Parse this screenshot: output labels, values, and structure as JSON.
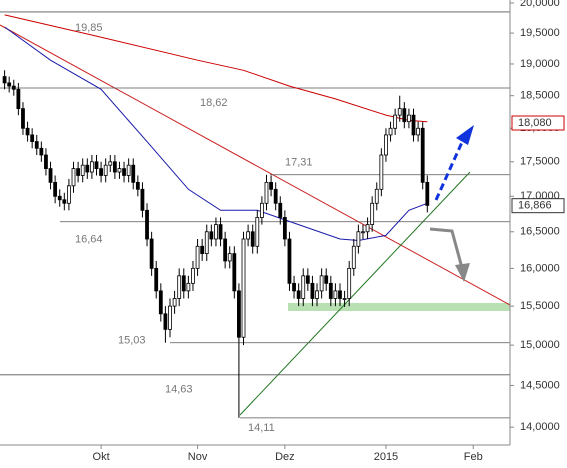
{
  "chart_data": {
    "type": "candlestick",
    "ylog": true,
    "ylim": [
      13.85,
      20.05
    ],
    "yticks": [
      {
        "value": 20,
        "label": "20,0000"
      },
      {
        "value": 19.5,
        "label": "19,5000"
      },
      {
        "value": 19,
        "label": "19,0000"
      },
      {
        "value": 18.5,
        "label": "18,5000"
      },
      {
        "value": 18,
        "label": "18,0000"
      },
      {
        "value": 17.5,
        "label": "17,5000"
      },
      {
        "value": 17,
        "label": "17,0000"
      },
      {
        "value": 16.5,
        "label": "16,5000"
      },
      {
        "value": 16,
        "label": "16,0000"
      },
      {
        "value": 15.5,
        "label": "15,5000"
      },
      {
        "value": 15,
        "label": "15,0000"
      },
      {
        "value": 14.5,
        "label": "14,5000"
      },
      {
        "value": 14,
        "label": "14,0000"
      }
    ],
    "xlim": [
      -1,
      110
    ],
    "xticks": [
      {
        "value": 21,
        "label": "Okt"
      },
      {
        "value": 42,
        "label": "Nov"
      },
      {
        "value": 61,
        "label": "Dez"
      },
      {
        "value": 83,
        "label": "2015"
      },
      {
        "value": 102,
        "label": "Feb"
      }
    ],
    "colors": {
      "up": "#ffffff",
      "down": "#000000"
    },
    "open": [
      18.8,
      18.7,
      18.65,
      18.6,
      18.3,
      18.0,
      17.9,
      17.8,
      17.7,
      17.6,
      17.4,
      17.2,
      17.0,
      16.95,
      16.9,
      17.15,
      17.4,
      17.3,
      17.45,
      17.35,
      17.5,
      17.4,
      17.3,
      17.45,
      17.5,
      17.35,
      17.4,
      17.3,
      17.45,
      17.2,
      17.1,
      16.8,
      16.4,
      16.0,
      15.7,
      15.4,
      15.2,
      15.5,
      15.6,
      15.9,
      15.7,
      15.8,
      16.0,
      16.3,
      16.2,
      16.5,
      16.4,
      16.6,
      16.4,
      16.1,
      16.2,
      15.7,
      15.1,
      16.4,
      16.5,
      16.3,
      16.7,
      16.9,
      17.2,
      17.1,
      16.9,
      16.7,
      16.4,
      15.8,
      15.7,
      15.6,
      15.9,
      15.8,
      15.6,
      15.7,
      15.9,
      15.8,
      15.6,
      15.7,
      15.6,
      15.6,
      16.0,
      16.3,
      16.5,
      16.5,
      16.6,
      16.9,
      17.1,
      17.6,
      17.9,
      18.0,
      18.2,
      18.3,
      18.1,
      18.2,
      17.9,
      18.0,
      17.2
    ],
    "high": [
      18.9,
      18.8,
      18.75,
      18.7,
      18.4,
      18.1,
      18.0,
      17.9,
      17.8,
      17.7,
      17.5,
      17.3,
      17.1,
      17.05,
      17.25,
      17.5,
      17.5,
      17.55,
      17.55,
      17.6,
      17.6,
      17.5,
      17.55,
      17.6,
      17.6,
      17.5,
      17.5,
      17.55,
      17.55,
      17.3,
      17.2,
      16.9,
      16.5,
      16.1,
      15.8,
      15.5,
      15.6,
      15.7,
      16.0,
      16.0,
      15.9,
      16.1,
      16.4,
      16.4,
      16.6,
      16.6,
      16.7,
      16.7,
      16.5,
      16.3,
      16.3,
      15.8,
      16.5,
      16.6,
      16.6,
      16.8,
      17.0,
      17.31,
      17.3,
      17.2,
      17.0,
      16.8,
      16.5,
      15.9,
      15.8,
      16.0,
      16.0,
      15.9,
      15.8,
      16.0,
      16.0,
      15.9,
      15.8,
      15.8,
      15.7,
      16.1,
      16.4,
      16.6,
      16.6,
      16.7,
      17.0,
      17.2,
      17.7,
      18.0,
      18.1,
      18.3,
      18.5,
      18.4,
      18.3,
      18.3,
      18.1,
      18.1,
      17.3
    ],
    "low": [
      18.6,
      18.55,
      18.5,
      18.2,
      17.9,
      17.8,
      17.7,
      17.6,
      17.5,
      17.3,
      17.1,
      16.9,
      16.85,
      16.8,
      16.8,
      17.05,
      17.2,
      17.2,
      17.25,
      17.25,
      17.3,
      17.2,
      17.2,
      17.35,
      17.25,
      17.25,
      17.2,
      17.2,
      17.1,
      17.0,
      16.7,
      16.3,
      15.9,
      15.6,
      15.3,
      15.03,
      15.1,
      15.4,
      15.5,
      15.6,
      15.6,
      15.7,
      15.9,
      16.1,
      16.1,
      16.3,
      16.3,
      16.3,
      16.0,
      16.0,
      15.6,
      14.11,
      15.0,
      16.3,
      16.2,
      16.2,
      16.6,
      16.8,
      17.0,
      16.8,
      16.6,
      16.3,
      15.7,
      15.6,
      15.5,
      15.5,
      15.7,
      15.5,
      15.5,
      15.6,
      15.7,
      15.5,
      15.5,
      15.5,
      15.49,
      15.5,
      15.9,
      16.2,
      16.4,
      16.4,
      16.5,
      16.8,
      17.0,
      17.5,
      17.8,
      17.9,
      18.1,
      18.0,
      18.0,
      17.8,
      17.8,
      17.1,
      16.77
    ],
    "close": [
      18.7,
      18.65,
      18.6,
      18.3,
      18.0,
      17.9,
      17.8,
      17.7,
      17.6,
      17.4,
      17.2,
      17.0,
      16.95,
      16.9,
      17.15,
      17.4,
      17.3,
      17.45,
      17.35,
      17.5,
      17.4,
      17.3,
      17.45,
      17.5,
      17.35,
      17.4,
      17.3,
      17.45,
      17.2,
      17.1,
      16.8,
      16.4,
      16.0,
      15.7,
      15.4,
      15.2,
      15.5,
      15.6,
      15.9,
      15.7,
      15.8,
      16.0,
      16.3,
      16.2,
      16.5,
      16.4,
      16.6,
      16.4,
      16.1,
      16.2,
      15.7,
      15.1,
      16.4,
      16.5,
      16.3,
      16.7,
      16.9,
      17.2,
      17.1,
      16.9,
      16.7,
      16.4,
      15.8,
      15.7,
      15.6,
      15.9,
      15.8,
      15.6,
      15.7,
      15.9,
      15.8,
      15.6,
      15.7,
      15.6,
      15.6,
      16.0,
      16.3,
      16.5,
      16.5,
      16.6,
      16.9,
      17.1,
      17.6,
      17.9,
      18.0,
      18.2,
      18.3,
      18.1,
      18.2,
      17.9,
      18.0,
      17.2,
      16.87
    ],
    "lines": [
      {
        "color": "#cc0000",
        "x": [
          0,
          20,
          42,
          52,
          62,
          72,
          83,
          88,
          92
        ],
        "values": [
          19.8,
          19.45,
          19.06,
          18.9,
          18.65,
          18.45,
          18.2,
          18.12,
          18.1
        ]
      },
      {
        "color": "#1a1aaa",
        "x": [
          0,
          10,
          21,
          31,
          40,
          47,
          55,
          64,
          73,
          77,
          83,
          88,
          92
        ],
        "values": [
          19.6,
          19.06,
          18.6,
          17.8,
          17.1,
          16.8,
          16.8,
          16.6,
          16.4,
          16.38,
          16.45,
          16.8,
          16.9
        ]
      }
    ],
    "levels": [
      {
        "value": 19.85,
        "label": "19,85"
      },
      {
        "value": 18.62,
        "label": "18,62"
      },
      {
        "value": 17.31,
        "label": "17,31"
      },
      {
        "value": 16.64,
        "label": "16,64"
      },
      {
        "value": 15.03,
        "label": "15,03"
      },
      {
        "value": 14.63,
        "label": "14,63"
      },
      {
        "value": 14.11,
        "label": "14,11"
      }
    ],
    "markers": [
      {
        "value": 18.08,
        "label": "18,080",
        "color": "#cc0000"
      },
      {
        "value": 16.866,
        "label": "16,866",
        "color": "#333333"
      }
    ]
  }
}
